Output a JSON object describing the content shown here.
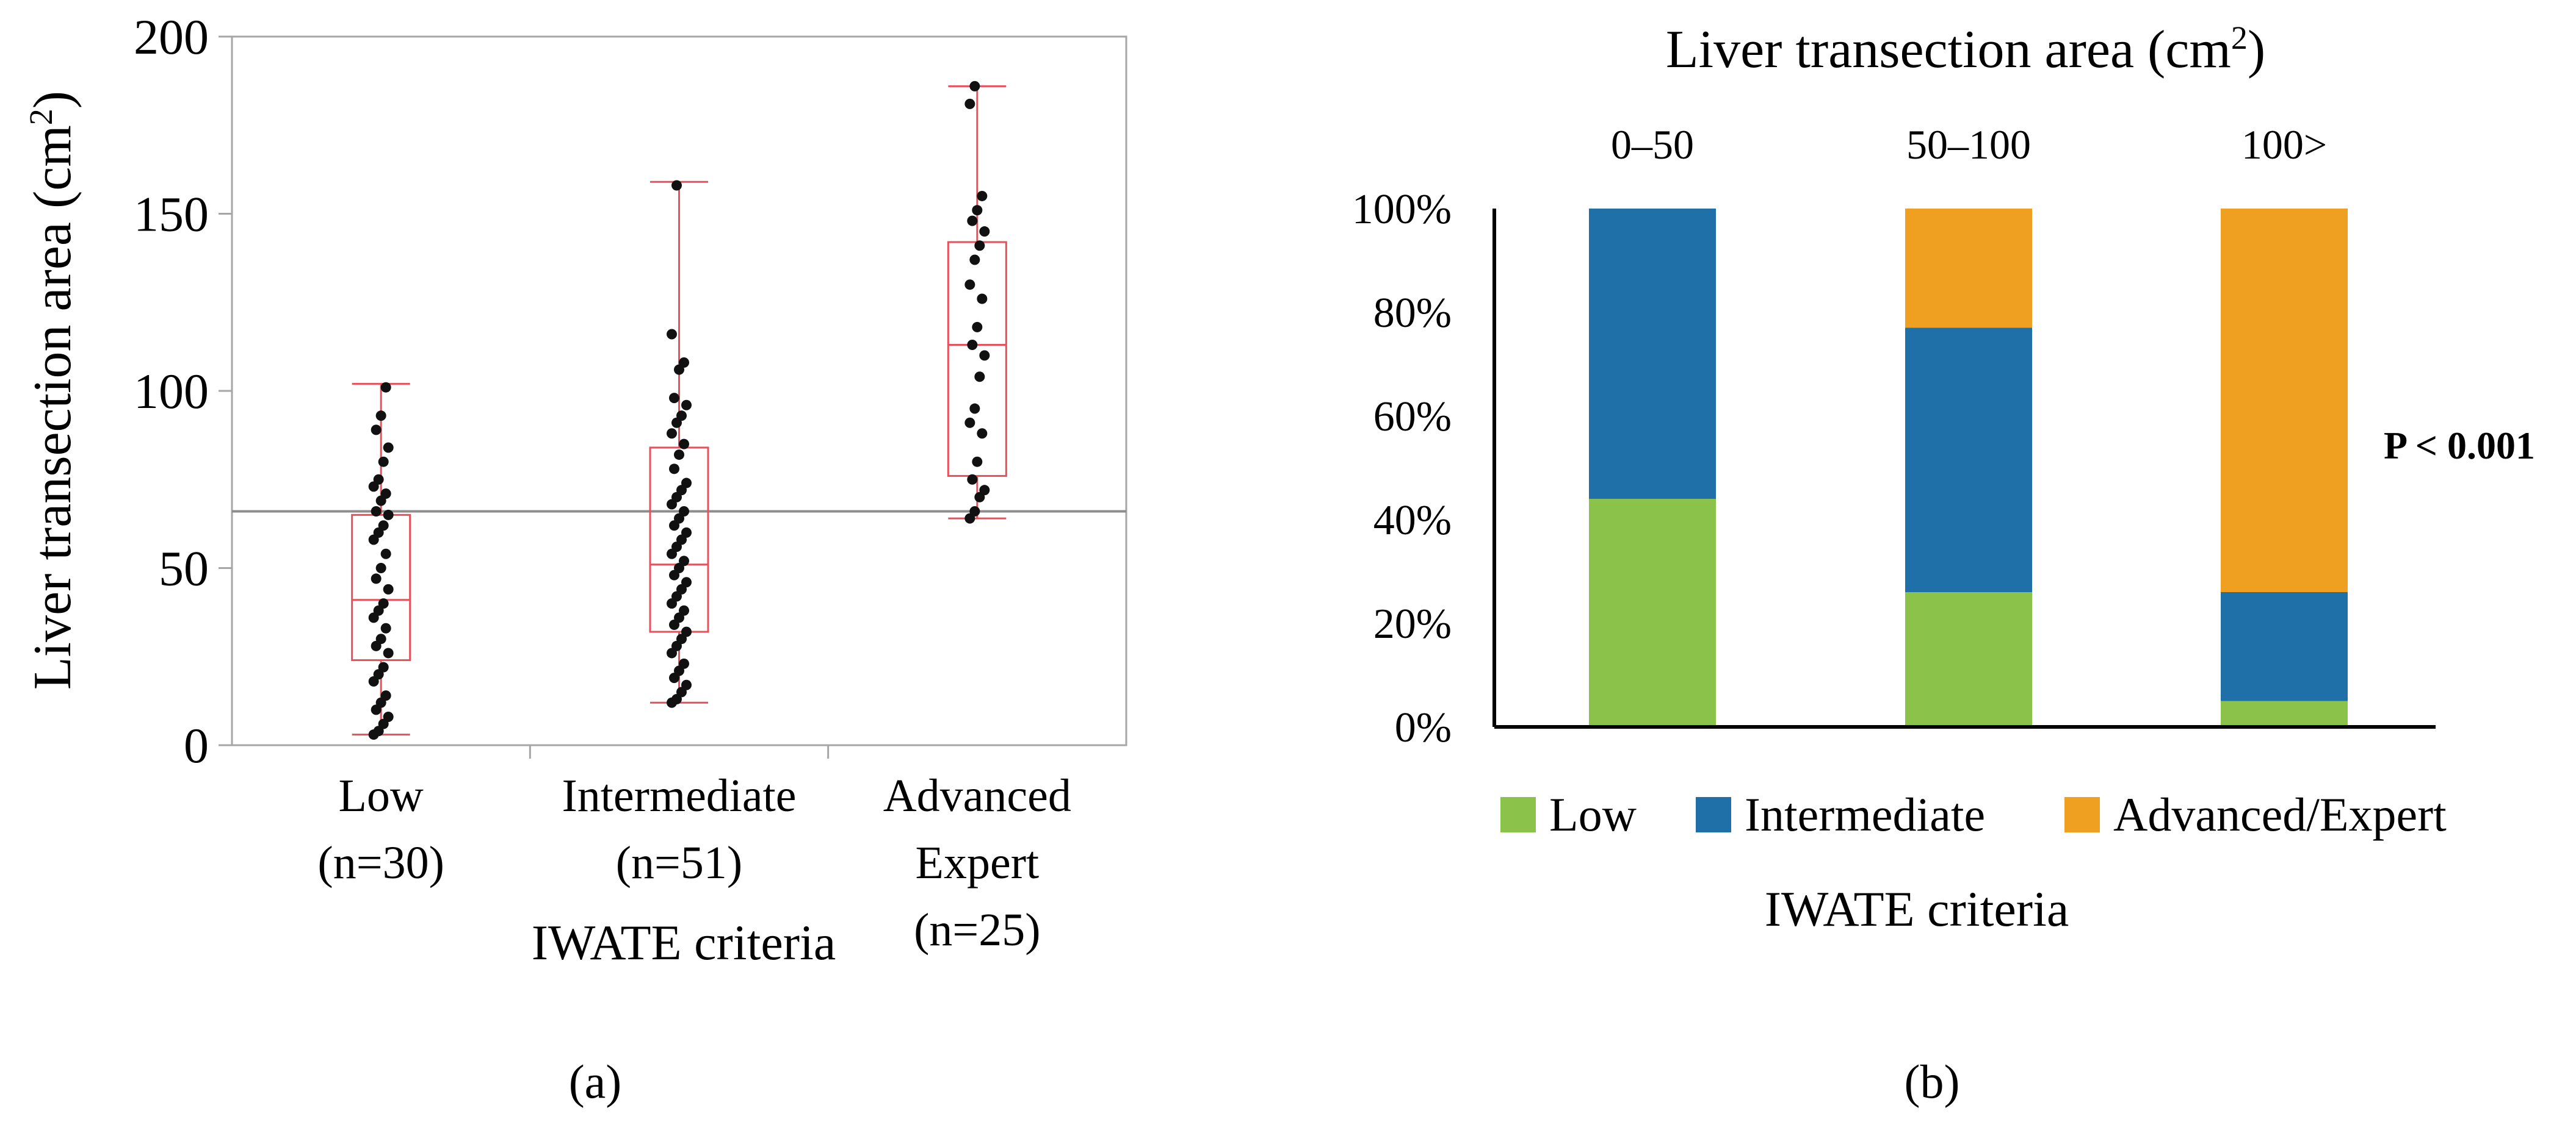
{
  "panel_a": {
    "label": "(a)",
    "chart_data": {
      "type": "box",
      "title": "",
      "ylabel": "Liver transection area (cm",
      "ylabel_sup": "2",
      "ylabel_close": ")",
      "xlabel": "IWATE criteria",
      "ylim": [
        0,
        200
      ],
      "yticks": [
        "0",
        "50",
        "100",
        "150",
        "200"
      ],
      "reference_line": 66,
      "groups": [
        {
          "name": "Low",
          "name_lines": [
            "Low",
            "(n=30)"
          ],
          "min": 3,
          "q1": 24,
          "median": 41,
          "q3": 65,
          "max": 102,
          "points": [
            3,
            4,
            6,
            8,
            10,
            12,
            14,
            18,
            20,
            22,
            26,
            28,
            30,
            33,
            36,
            38,
            40,
            44,
            47,
            50,
            54,
            58,
            60,
            62,
            65,
            66,
            69,
            71,
            73,
            75,
            80,
            84,
            89,
            93,
            101
          ]
        },
        {
          "name": "Intermediate",
          "name_lines": [
            "Intermediate",
            "(n=51)"
          ],
          "min": 12,
          "q1": 32,
          "median": 51,
          "q3": 84,
          "max": 159,
          "points": [
            12,
            13,
            15,
            17,
            19,
            21,
            23,
            26,
            28,
            30,
            32,
            34,
            36,
            38,
            40,
            42,
            44,
            46,
            48,
            50,
            52,
            54,
            56,
            58,
            60,
            62,
            64,
            66,
            68,
            70,
            72,
            74,
            78,
            82,
            85,
            88,
            91,
            93,
            96,
            98,
            106,
            108,
            116,
            158
          ]
        },
        {
          "name": "Advanced Expert",
          "name_lines": [
            "Advanced",
            "Expert",
            "(n=25)"
          ],
          "min": 64,
          "q1": 76,
          "median": 113,
          "q3": 142,
          "max": 186,
          "points": [
            64,
            66,
            70,
            72,
            75,
            80,
            88,
            91,
            95,
            104,
            110,
            113,
            118,
            126,
            130,
            137,
            141,
            145,
            148,
            151,
            155,
            181,
            186
          ]
        }
      ]
    }
  },
  "panel_b": {
    "label": "(b)",
    "chart_data": {
      "type": "bar",
      "stacked": true,
      "title": "Liver transection area (cm",
      "title_sup": "2",
      "title_close": ")",
      "categories": [
        "0–50",
        "50–100",
        "100>"
      ],
      "yticks": [
        "0%",
        "20%",
        "40%",
        "60%",
        "80%",
        "100%"
      ],
      "ylim": [
        0,
        100
      ],
      "series": [
        {
          "name": "Low",
          "color": "#8bc34a",
          "values": [
            44,
            26,
            5
          ]
        },
        {
          "name": "Intermediate",
          "color": "#1f6fa8",
          "values": [
            56,
            51,
            21
          ]
        },
        {
          "name": "Advanced/Expert",
          "color": "#f0a020",
          "values": [
            0,
            23,
            74
          ]
        }
      ],
      "xlabel": "IWATE criteria",
      "annotation": "P < 0.001",
      "legend_position": "bottom"
    }
  }
}
